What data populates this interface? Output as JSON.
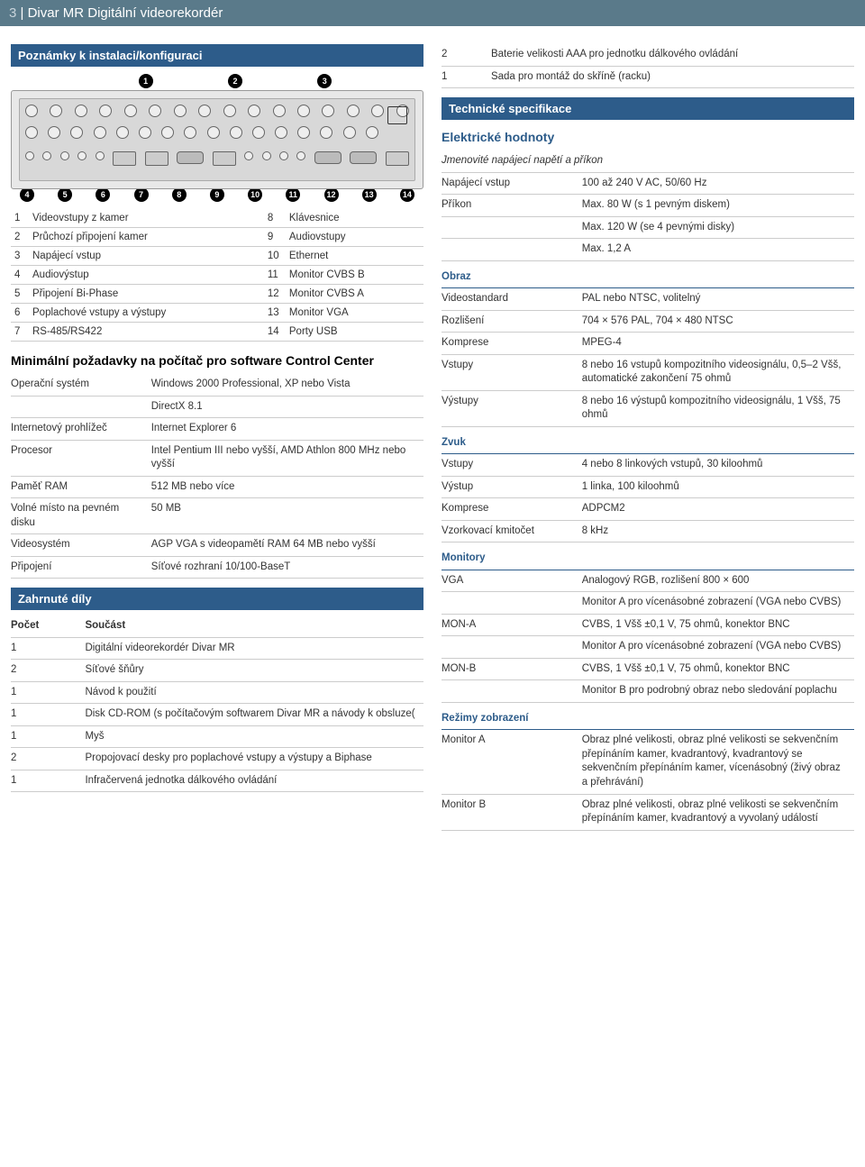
{
  "header": {
    "page_num": "3",
    "separator": " | ",
    "title": "Divar MR Digitální videorekordér"
  },
  "left": {
    "section_title": "Poznámky k instalaci/konfiguraci",
    "callouts_top": [
      "1",
      "2",
      "3"
    ],
    "callouts_bottom": [
      "4",
      "5",
      "6",
      "7",
      "8",
      "9",
      "10",
      "11",
      "12",
      "13",
      "14"
    ],
    "legend": [
      {
        "n1": "1",
        "t1": "Videovstupy z kamer",
        "n2": "8",
        "t2": "Klávesnice"
      },
      {
        "n1": "2",
        "t1": "Průchozí připojení kamer",
        "n2": "9",
        "t2": "Audiovstupy"
      },
      {
        "n1": "3",
        "t1": "Napájecí vstup",
        "n2": "10",
        "t2": "Ethernet"
      },
      {
        "n1": "4",
        "t1": "Audiovýstup",
        "n2": "11",
        "t2": "Monitor CVBS B"
      },
      {
        "n1": "5",
        "t1": "Připojení Bi-Phase",
        "n2": "12",
        "t2": "Monitor CVBS A"
      },
      {
        "n1": "6",
        "t1": "Poplachové vstupy a výstupy",
        "n2": "13",
        "t2": "Monitor VGA"
      },
      {
        "n1": "7",
        "t1": "RS-485/RS422",
        "n2": "14",
        "t2": "Porty USB"
      }
    ],
    "min_req_heading": "Minimální požadavky na počítač pro software Control Center",
    "min_req": [
      {
        "k": "Operační systém",
        "v": "Windows 2000 Professional, XP nebo Vista"
      },
      {
        "k": "",
        "v": "DirectX 8.1"
      },
      {
        "k": "Internetový prohlížeč",
        "v": "Internet Explorer 6"
      },
      {
        "k": "Procesor",
        "v": "Intel Pentium III nebo vyšší, AMD Athlon 800 MHz nebo vyšší"
      },
      {
        "k": "Paměť RAM",
        "v": "512 MB nebo více"
      },
      {
        "k": "Volné místo na pevném disku",
        "v": "50 MB"
      },
      {
        "k": "Videosystém",
        "v": "AGP VGA s videopamětí RAM 64 MB nebo vyšší"
      },
      {
        "k": "Připojení",
        "v": "Síťové rozhraní 10/100-BaseT"
      }
    ],
    "included_heading": "Zahrnuté díly",
    "included_cols": {
      "c1": "Počet",
      "c2": "Součást"
    },
    "included": [
      {
        "q": "1",
        "i": "Digitální videorekordér Divar MR"
      },
      {
        "q": "2",
        "i": "Síťové šňůry"
      },
      {
        "q": "1",
        "i": "Návod k použití"
      },
      {
        "q": "1",
        "i": "Disk CD-ROM (s počítačovým softwarem Divar MR a návody k obsluze("
      },
      {
        "q": "1",
        "i": "Myš"
      },
      {
        "q": "2",
        "i": "Propojovací desky pro poplachové vstupy a výstupy a Biphase"
      },
      {
        "q": "1",
        "i": "Infračervená jednotka dálkového ovládání"
      }
    ]
  },
  "right": {
    "pre_rows": [
      {
        "k": "2",
        "v": "Baterie velikosti AAA pro jednotku dálkového ovládání"
      },
      {
        "k": "1",
        "v": "Sada pro montáž do skříně (racku)"
      }
    ],
    "tech_heading": "Technické specifikace",
    "elec_heading": "Elektrické hodnoty",
    "elec_sub": "Jmenovité napájecí napětí a příkon",
    "elec": [
      {
        "k": "Napájecí vstup",
        "v": "100 až 240 V AC, 50/60 Hz"
      },
      {
        "k": "Příkon",
        "v": "Max. 80 W (s 1 pevným diskem)"
      },
      {
        "k": "",
        "v": "Max. 120 W (se 4 pevnými disky)"
      },
      {
        "k": "",
        "v": "Max. 1,2 A"
      }
    ],
    "obraz_heading": "Obraz",
    "obraz": [
      {
        "k": "Videostandard",
        "v": "PAL nebo NTSC, volitelný"
      },
      {
        "k": "Rozlišení",
        "v": "704 × 576 PAL, 704 × 480 NTSC"
      },
      {
        "k": "Komprese",
        "v": "MPEG-4"
      },
      {
        "k": "Vstupy",
        "v": "8 nebo 16 vstupů kompozitního videosignálu, 0,5–2 Všš, automatické zakončení 75 ohmů"
      },
      {
        "k": "Výstupy",
        "v": "8 nebo 16 výstupů kompozitního videosignálu, 1 Všš, 75 ohmů"
      }
    ],
    "zvuk_heading": "Zvuk",
    "zvuk": [
      {
        "k": "Vstupy",
        "v": "4 nebo 8 linkových vstupů, 30 kiloohmů"
      },
      {
        "k": "Výstup",
        "v": "1 linka, 100 kiloohmů"
      },
      {
        "k": "Komprese",
        "v": "ADPCM2"
      },
      {
        "k": "Vzorkovací kmitočet",
        "v": "8 kHz"
      }
    ],
    "mon_heading": "Monitory",
    "mon": [
      {
        "k": "VGA",
        "v": "Analogový RGB, rozlišení 800 × 600"
      },
      {
        "k": "",
        "v": "Monitor A pro vícenásobné zobrazení (VGA nebo CVBS)"
      },
      {
        "k": "MON-A",
        "v": "CVBS, 1 Všš ±0,1 V, 75 ohmů, konektor BNC"
      },
      {
        "k": "",
        "v": "Monitor A pro vícenásobné zobrazení (VGA nebo CVBS)"
      },
      {
        "k": "MON-B",
        "v": "CVBS, 1 Všš ±0,1 V, 75 ohmů, konektor BNC"
      },
      {
        "k": "",
        "v": "Monitor B pro podrobný obraz nebo sledování poplachu"
      }
    ],
    "disp_heading": "Režimy zobrazení",
    "disp": [
      {
        "k": "Monitor A",
        "v": "Obraz plné velikosti, obraz plné velikosti se sekvenčním přepínáním kamer, kvadrantový, kvadrantový se sekvenčním přepínáním kamer, vícenásobný (živý obraz a přehrávání)"
      },
      {
        "k": "Monitor B",
        "v": "Obraz plné velikosti, obraz plné velikosti se sekvenčním přepínáním kamer, kvadrantový a vyvolaný událostí"
      }
    ]
  },
  "colors": {
    "bar": "#2d5c8a",
    "header": "#5a7a8a"
  }
}
